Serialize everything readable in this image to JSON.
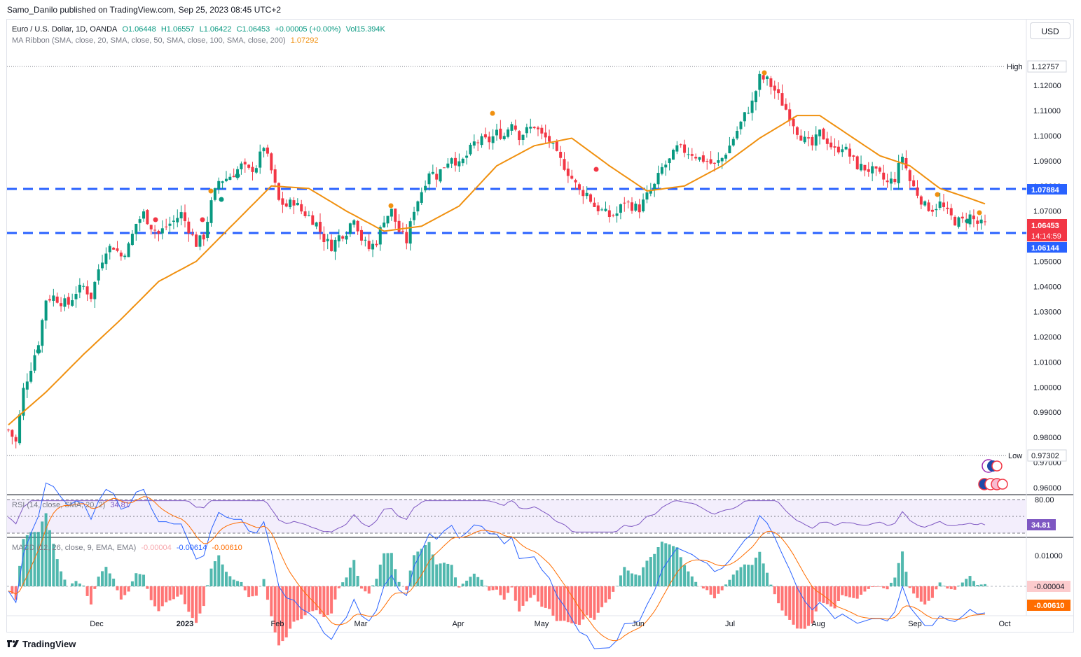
{
  "header": {
    "publisher_line": "Samo_Danilo published on TradingView.com, Sep 25, 2023 08:45 UTC+2"
  },
  "toolbar": {
    "currency_button": "USD"
  },
  "legend": {
    "symbol": "Euro / U.S. Dollar, 1D, OANDA",
    "open": "O1.06448",
    "high": "H1.06557",
    "low": "L1.06422",
    "close": "C1.06453",
    "change": "+0.00005 (+0.00%)",
    "volume": "Vol15.394K",
    "ma_label": "MA Ribbon (SMA, close, 20, SMA, close, 50, SMA, close, 100, SMA, close, 200)",
    "ma_value": "1.07292",
    "rsi_label": "RSI (14, close, SMA, 20, 2)",
    "rsi_value": "34.81",
    "macd_label": "MACD (12, 26, close, 9, EMA, EMA)",
    "macd_hist": "-0.00004",
    "macd_line": "-0.00614",
    "macd_signal": "-0.00610"
  },
  "price_axis": {
    "ticks": [
      "1.12000",
      "1.11000",
      "1.10000",
      "1.09000",
      "1.08000",
      "1.07000",
      "1.06000",
      "1.05000",
      "1.04000",
      "1.03000",
      "1.02000",
      "1.01000",
      "1.00000",
      "0.99000",
      "0.98000",
      "0.97000",
      "0.96000"
    ],
    "high_label": "High",
    "high_value": "1.12757",
    "low_label": "Low",
    "low_value": "0.97302",
    "level_upper": "1.07884",
    "level_lower": "1.06144",
    "last_price": "1.06453",
    "countdown": "14:14:59"
  },
  "rsi_axis": {
    "top_tick": "80.00",
    "value": "34.81"
  },
  "macd_axis": {
    "tick": "0.01000",
    "hist_value": "-0.00004",
    "signal_value": "-0.00610"
  },
  "time_axis": {
    "labels": [
      "Dec",
      "2023",
      "Feb",
      "Mar",
      "Apr",
      "May",
      "Jun",
      "Jul",
      "Aug",
      "Sep",
      "Oct"
    ]
  },
  "footer": {
    "brand": "TradingView"
  },
  "colors": {
    "up": "#089981",
    "down": "#f23645",
    "ma": "#f0900f",
    "level": "#2962ff",
    "rsi": "#7e57c2",
    "macd": "#2962ff",
    "signal": "#ff6d00"
  },
  "chart_data": {
    "type": "candlestick",
    "title": "Euro / U.S. Dollar, 1D, OANDA",
    "ylim": [
      0.955,
      1.135
    ],
    "horizontal_levels": [
      1.07884,
      1.06144
    ],
    "high": 1.12757,
    "low": 0.97302,
    "close_path": [
      [
        0,
        0.983
      ],
      [
        2,
        0.978
      ],
      [
        4,
        0.999
      ],
      [
        6,
        1.008
      ],
      [
        8,
        1.018
      ],
      [
        10,
        1.035
      ],
      [
        12,
        1.036
      ],
      [
        14,
        1.034
      ],
      [
        16,
        1.033
      ],
      [
        18,
        1.038
      ],
      [
        20,
        1.04
      ],
      [
        22,
        1.036
      ],
      [
        24,
        1.047
      ],
      [
        26,
        1.055
      ],
      [
        28,
        1.056
      ],
      [
        30,
        1.052
      ],
      [
        32,
        1.056
      ],
      [
        34,
        1.065
      ],
      [
        36,
        1.069
      ],
      [
        38,
        1.064
      ],
      [
        40,
        1.061
      ],
      [
        42,
        1.064
      ],
      [
        44,
        1.066
      ],
      [
        46,
        1.069
      ],
      [
        48,
        1.063
      ],
      [
        50,
        1.057
      ],
      [
        52,
        1.06
      ],
      [
        54,
        1.073
      ],
      [
        56,
        1.082
      ],
      [
        58,
        1.083
      ],
      [
        60,
        1.085
      ],
      [
        62,
        1.088
      ],
      [
        64,
        1.086
      ],
      [
        66,
        1.088
      ],
      [
        68,
        1.096
      ],
      [
        70,
        1.086
      ],
      [
        72,
        1.074
      ],
      [
        74,
        1.072
      ],
      [
        76,
        1.074
      ],
      [
        78,
        1.07
      ],
      [
        80,
        1.068
      ],
      [
        82,
        1.065
      ],
      [
        84,
        1.059
      ],
      [
        86,
        1.056
      ],
      [
        88,
        1.06
      ],
      [
        90,
        1.062
      ],
      [
        92,
        1.068
      ],
      [
        94,
        1.059
      ],
      [
        96,
        1.055
      ],
      [
        98,
        1.058
      ],
      [
        100,
        1.067
      ],
      [
        102,
        1.07
      ],
      [
        104,
        1.062
      ],
      [
        106,
        1.058
      ],
      [
        108,
        1.071
      ],
      [
        110,
        1.078
      ],
      [
        112,
        1.086
      ],
      [
        114,
        1.084
      ],
      [
        116,
        1.088
      ],
      [
        118,
        1.092
      ],
      [
        120,
        1.088
      ],
      [
        122,
        1.092
      ],
      [
        124,
        1.097
      ],
      [
        126,
        1.098
      ],
      [
        128,
        1.098
      ],
      [
        130,
        1.101
      ],
      [
        132,
        1.1
      ],
      [
        134,
        1.106
      ],
      [
        136,
        1.1
      ],
      [
        138,
        1.102
      ],
      [
        140,
        1.104
      ],
      [
        142,
        1.1
      ],
      [
        144,
        1.098
      ],
      [
        146,
        1.092
      ],
      [
        148,
        1.088
      ],
      [
        150,
        1.083
      ],
      [
        152,
        1.078
      ],
      [
        154,
        1.077
      ],
      [
        156,
        1.072
      ],
      [
        158,
        1.07
      ],
      [
        160,
        1.068
      ],
      [
        162,
        1.069
      ],
      [
        164,
        1.074
      ],
      [
        166,
        1.072
      ],
      [
        168,
        1.071
      ],
      [
        170,
        1.076
      ],
      [
        172,
        1.08
      ],
      [
        174,
        1.087
      ],
      [
        176,
        1.09
      ],
      [
        178,
        1.095
      ],
      [
        180,
        1.094
      ],
      [
        182,
        1.093
      ],
      [
        184,
        1.091
      ],
      [
        186,
        1.09
      ],
      [
        188,
        1.088
      ],
      [
        190,
        1.091
      ],
      [
        192,
        1.096
      ],
      [
        194,
        1.102
      ],
      [
        196,
        1.108
      ],
      [
        198,
        1.113
      ],
      [
        200,
        1.123
      ],
      [
        202,
        1.122
      ],
      [
        204,
        1.118
      ],
      [
        206,
        1.113
      ],
      [
        208,
        1.108
      ],
      [
        210,
        1.102
      ],
      [
        212,
        1.098
      ],
      [
        214,
        1.096
      ],
      [
        216,
        1.101
      ],
      [
        218,
        1.098
      ],
      [
        220,
        1.094
      ],
      [
        222,
        1.096
      ],
      [
        224,
        1.092
      ],
      [
        226,
        1.088
      ],
      [
        228,
        1.087
      ],
      [
        230,
        1.086
      ],
      [
        232,
        1.084
      ],
      [
        234,
        1.081
      ],
      [
        236,
        1.083
      ],
      [
        238,
        1.092
      ],
      [
        240,
        1.082
      ],
      [
        242,
        1.077
      ],
      [
        244,
        1.072
      ],
      [
        246,
        1.071
      ],
      [
        248,
        1.073
      ],
      [
        250,
        1.069
      ],
      [
        252,
        1.066
      ],
      [
        254,
        1.066
      ],
      [
        256,
        1.068
      ],
      [
        258,
        1.065
      ],
      [
        260,
        1.0645
      ]
    ],
    "ma20_path": [
      [
        0,
        0.985
      ],
      [
        10,
        0.998
      ],
      [
        20,
        1.013
      ],
      [
        30,
        1.027
      ],
      [
        40,
        1.042
      ],
      [
        50,
        1.05
      ],
      [
        60,
        1.065
      ],
      [
        70,
        1.08
      ],
      [
        80,
        1.079
      ],
      [
        90,
        1.07
      ],
      [
        100,
        1.062
      ],
      [
        110,
        1.064
      ],
      [
        120,
        1.072
      ],
      [
        130,
        1.088
      ],
      [
        140,
        1.096
      ],
      [
        150,
        1.099
      ],
      [
        160,
        1.088
      ],
      [
        170,
        1.078
      ],
      [
        180,
        1.08
      ],
      [
        190,
        1.088
      ],
      [
        200,
        1.099
      ],
      [
        210,
        1.108
      ],
      [
        216,
        1.108
      ],
      [
        224,
        1.1
      ],
      [
        232,
        1.092
      ],
      [
        240,
        1.088
      ],
      [
        248,
        1.079
      ],
      [
        256,
        1.075
      ],
      [
        260,
        1.0729
      ]
    ],
    "rsi": {
      "ylim": [
        0,
        100
      ],
      "overbought": 80,
      "oversold": 20,
      "last": 34.81
    },
    "macd": {
      "line_last": -0.00614,
      "signal_last": -0.0061,
      "hist_last": -4e-05
    }
  }
}
